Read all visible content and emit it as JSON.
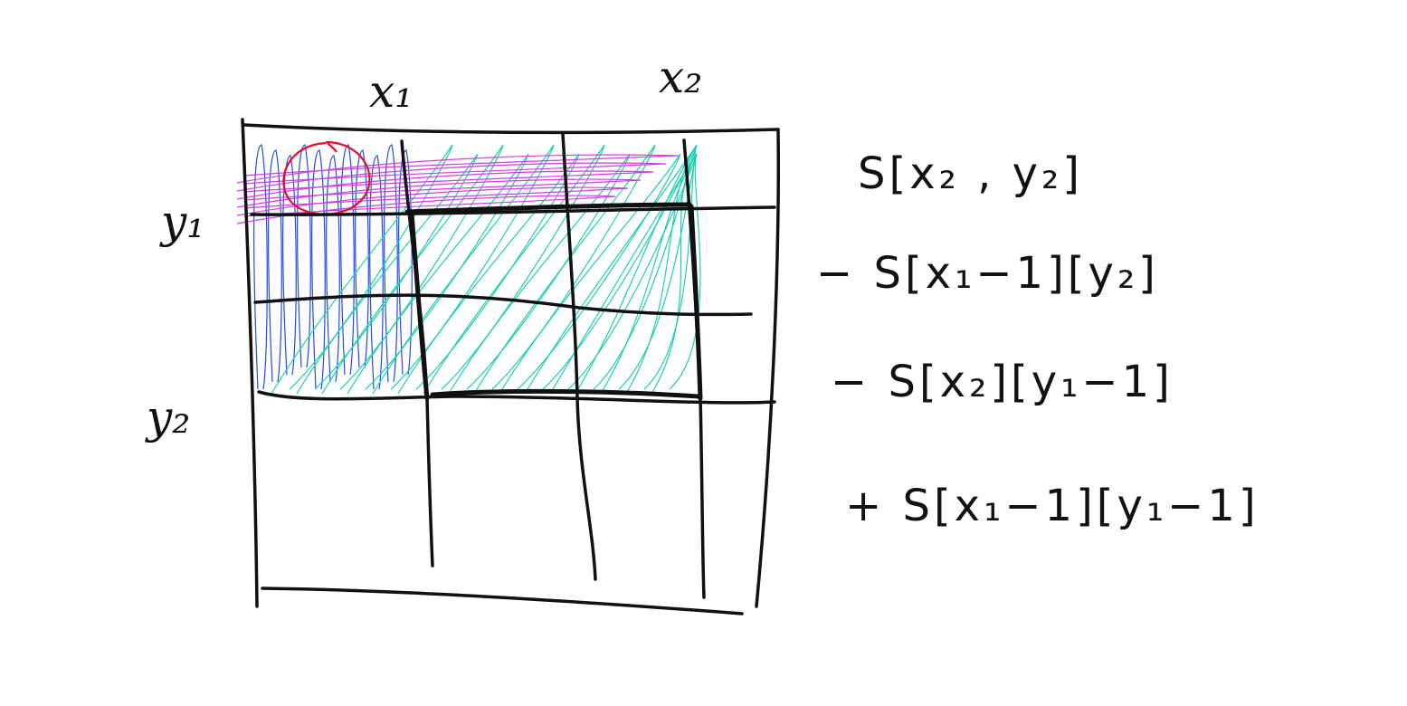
{
  "labels": {
    "x1": "x₁",
    "x2": "x₂",
    "y1": "y₁",
    "y2": "y₂"
  },
  "equation": {
    "line1": "S[x₂ , y₂]",
    "line2": "− S[x₁−1][y₂]",
    "line3": "− S[x₂][y₁−1]",
    "line4": "+ S[x₁−1][y₁−1]"
  },
  "colors": {
    "ink": "#111111",
    "blue_hatch": "#2050e0",
    "cyan_hatch": "#20d0b0",
    "magenta_hatch": "#d040e0",
    "red_circle": "#e01030"
  }
}
